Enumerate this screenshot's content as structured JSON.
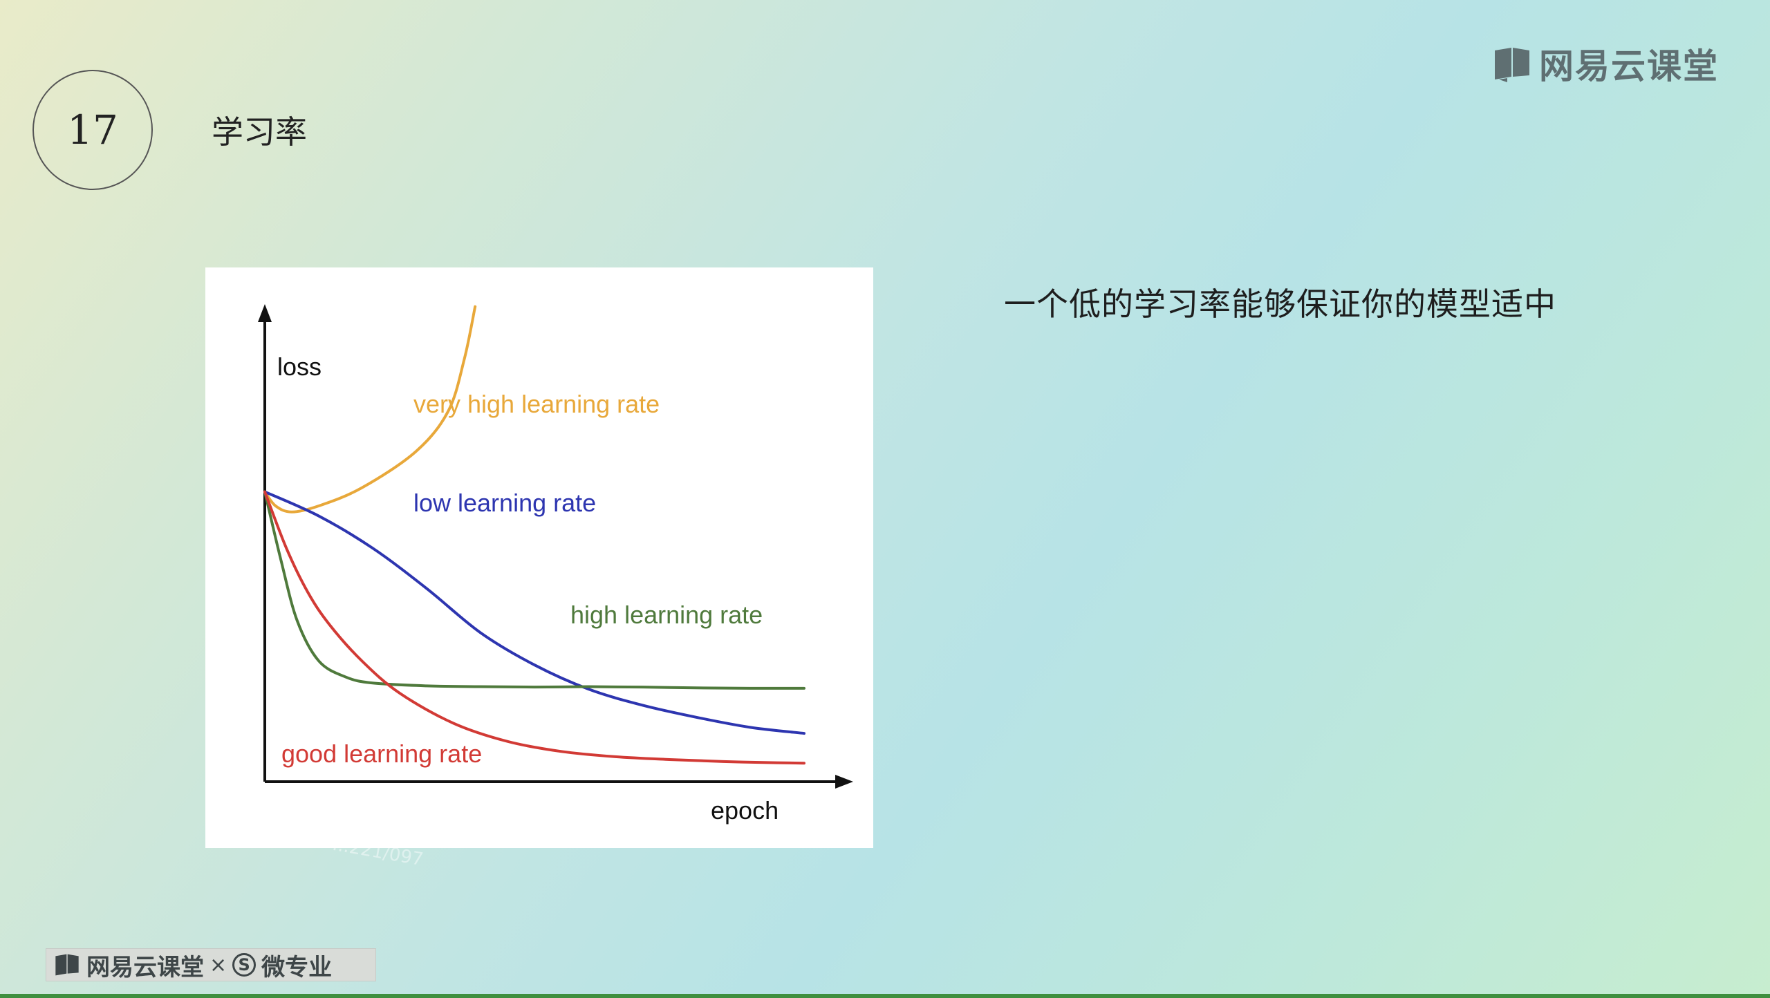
{
  "slide": {
    "number": "17",
    "title": "学习率",
    "body_text": "一个低的学习率能够保证你的模型适中"
  },
  "logo": {
    "text": "网易云课堂",
    "icon": "book-icon"
  },
  "brand_bar": {
    "left_text": "网易云课堂",
    "separator": "×",
    "s_badge": "S",
    "right_text": "微专业",
    "icon": "book-icon"
  },
  "watermark": "...221/097",
  "colors": {
    "very_high": "#e8a83a",
    "low": "#2d35b0",
    "high": "#4f7a3c",
    "good": "#d23a35",
    "axis": "#111111"
  },
  "chart_data": {
    "type": "line",
    "xlabel": "epoch",
    "ylabel": "loss",
    "grid": false,
    "series": [
      {
        "name": "very high learning rate",
        "key": "very_high",
        "x": [
          0,
          2,
          5,
          10,
          18,
          28,
          34,
          37,
          39
        ],
        "y": [
          0.72,
          0.685,
          0.67,
          0.685,
          0.73,
          0.82,
          0.92,
          1.05,
          1.18
        ]
      },
      {
        "name": "low learning rate",
        "key": "low",
        "x": [
          0,
          10,
          20,
          30,
          40,
          50,
          60,
          70,
          80,
          90,
          100
        ],
        "y": [
          0.72,
          0.66,
          0.58,
          0.48,
          0.37,
          0.29,
          0.23,
          0.19,
          0.16,
          0.135,
          0.12
        ]
      },
      {
        "name": "high learning rate",
        "key": "high",
        "x": [
          0,
          3,
          6,
          10,
          15,
          20,
          30,
          40,
          50,
          60,
          70,
          80,
          90,
          100
        ],
        "y": [
          0.72,
          0.55,
          0.4,
          0.3,
          0.26,
          0.245,
          0.238,
          0.236,
          0.235,
          0.236,
          0.235,
          0.233,
          0.232,
          0.232
        ]
      },
      {
        "name": "good learning rate",
        "key": "good",
        "x": [
          0,
          4,
          8,
          12,
          18,
          25,
          35,
          45,
          55,
          65,
          75,
          85,
          95,
          100
        ],
        "y": [
          0.72,
          0.58,
          0.47,
          0.39,
          0.3,
          0.22,
          0.145,
          0.1,
          0.075,
          0.062,
          0.055,
          0.05,
          0.047,
          0.046
        ]
      }
    ],
    "xlim": [
      0,
      105
    ],
    "ylim": [
      0,
      1.2
    ]
  }
}
